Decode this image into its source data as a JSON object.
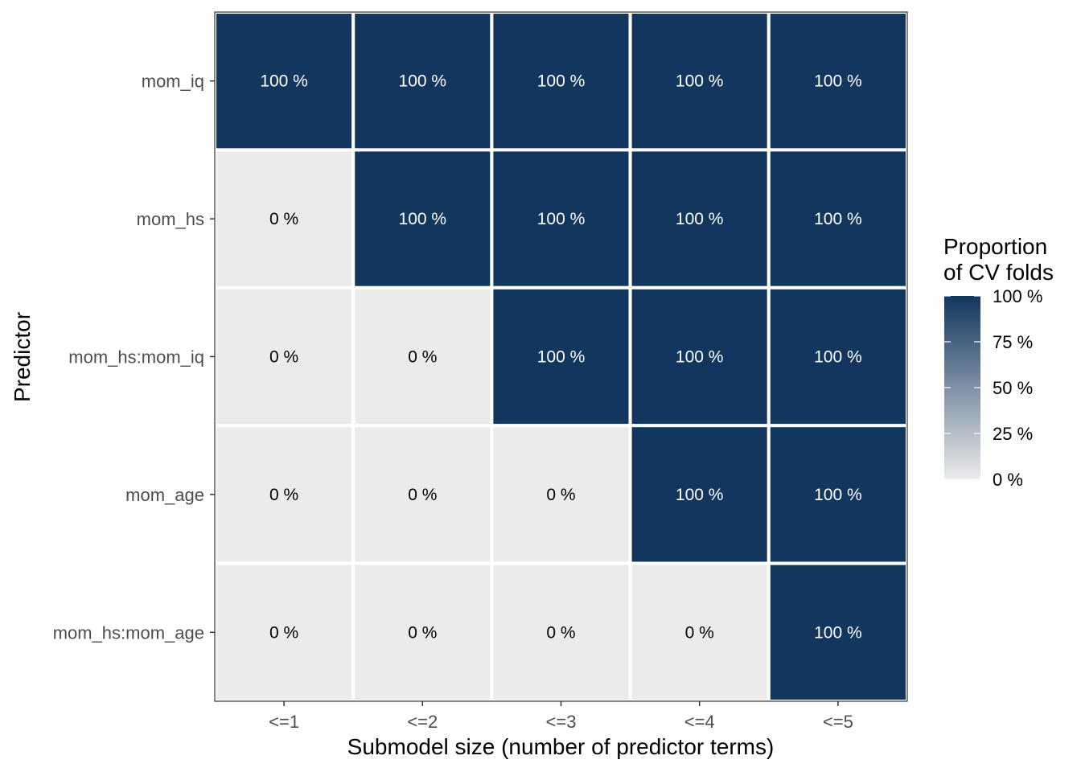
{
  "chart_data": {
    "type": "heatmap",
    "title": "",
    "xlabel": "Submodel size (number of predictor terms)",
    "ylabel": "Predictor",
    "x_categories": [
      "<=1",
      "<=2",
      "<=3",
      "<=4",
      "<=5"
    ],
    "y_categories": [
      "mom_iq",
      "mom_hs",
      "mom_hs:mom_iq",
      "mom_age",
      "mom_hs:mom_age"
    ],
    "values": [
      [
        100,
        100,
        100,
        100,
        100
      ],
      [
        0,
        100,
        100,
        100,
        100
      ],
      [
        0,
        0,
        100,
        100,
        100
      ],
      [
        0,
        0,
        0,
        100,
        100
      ],
      [
        0,
        0,
        0,
        0,
        100
      ]
    ],
    "cell_labels": [
      [
        "100 %",
        "100 %",
        "100 %",
        "100 %",
        "100 %"
      ],
      [
        "0 %",
        "100 %",
        "100 %",
        "100 %",
        "100 %"
      ],
      [
        "0 %",
        "0 %",
        "100 %",
        "100 %",
        "100 %"
      ],
      [
        "0 %",
        "0 %",
        "0 %",
        "100 %",
        "100 %"
      ],
      [
        "0 %",
        "0 %",
        "0 %",
        "0 %",
        "100 %"
      ]
    ],
    "value_range": [
      0,
      100
    ],
    "legend": {
      "title_lines": [
        "Proportion",
        "of CV folds"
      ],
      "tick_values": [
        100,
        75,
        50,
        25,
        0
      ],
      "tick_labels": [
        "100 %",
        "75 %",
        "50 %",
        "25 %",
        "0 %"
      ],
      "position": "right"
    },
    "colors": {
      "low": "#ebebeb",
      "high": "#12365e",
      "text_on_low": "#000000",
      "text_on_high": "#ffffff",
      "cell_border": "#ffffff",
      "panel_border": "#333333"
    },
    "grid": false
  }
}
